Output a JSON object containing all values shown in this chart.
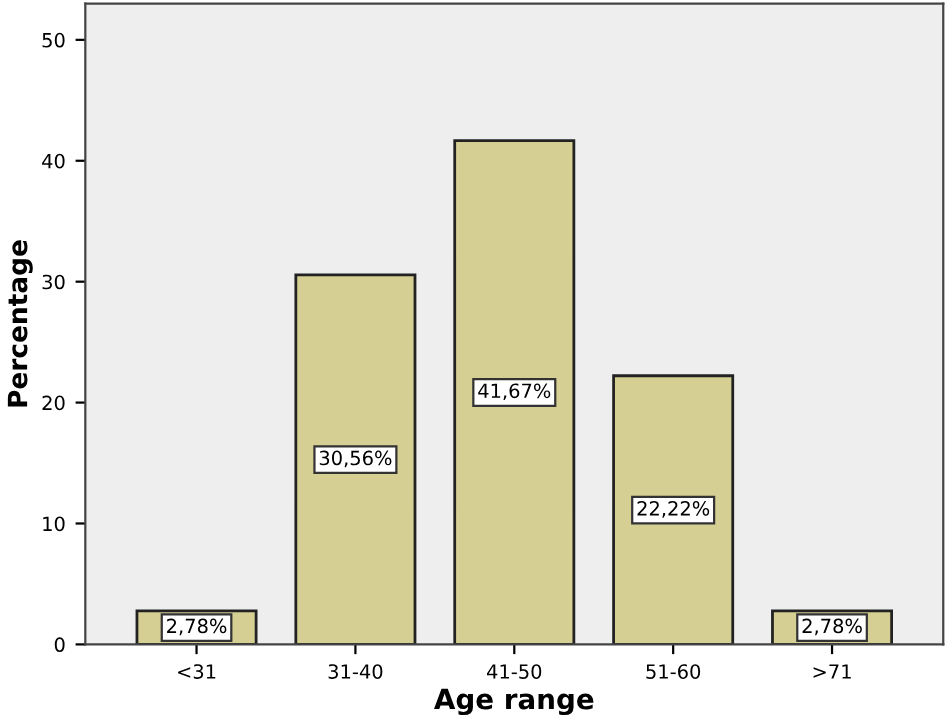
{
  "chart_data": {
    "type": "bar",
    "xlabel": "Age range",
    "ylabel": "Percentage",
    "categories": [
      "<31",
      "31-40",
      "41-50",
      "51-60",
      ">71"
    ],
    "values": [
      2.78,
      30.56,
      41.67,
      22.22,
      2.78
    ],
    "value_labels": [
      "2,78%",
      "30,56%",
      "41,67%",
      "22,22%",
      "2,78%"
    ],
    "color": "#d6cf94",
    "ylim": [
      0,
      53
    ],
    "yticks": [
      0,
      10,
      20,
      30,
      40,
      50
    ],
    "grid": false
  }
}
